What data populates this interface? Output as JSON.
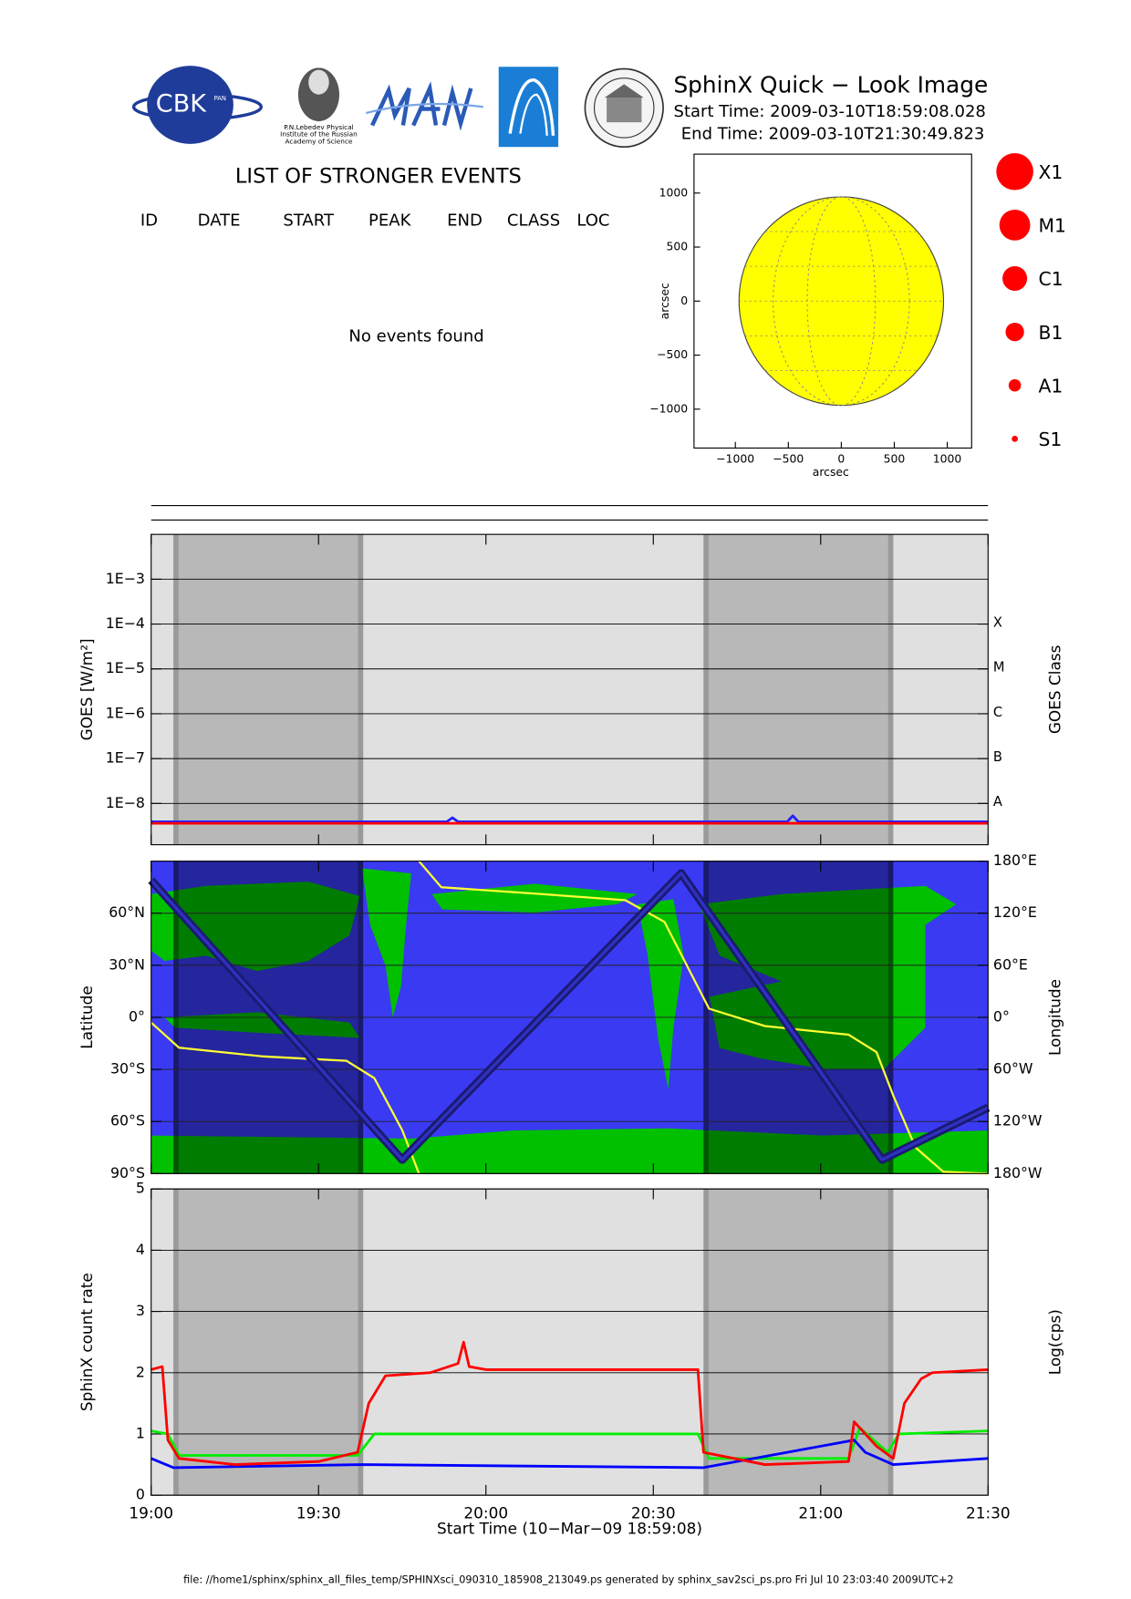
{
  "header": {
    "title": "SphinX Quick − Look Image",
    "start_time": "Start Time: 2009-03-10T18:59:08.028",
    "end_time": "End Time: 2009-03-10T21:30:49.823",
    "logo_cbk": "CBK",
    "logo_pan": "PAN",
    "lebedev": [
      "P.N.Lebedev Physical",
      "Institute of the Russian",
      "Academy of Science"
    ]
  },
  "events": {
    "title": "LIST OF STRONGER EVENTS",
    "columns": [
      "ID",
      "DATE",
      "START",
      "PEAK",
      "END",
      "CLASS",
      "LOC"
    ],
    "message": "No events found"
  },
  "class_legend": [
    "X1",
    "M1",
    "C1",
    "B1",
    "A1",
    "S1"
  ],
  "footer": "file: //home1/sphinx/sphinx_all_files_temp/SPHINXsci_090310_185908_213049.ps generated by sphinx_sav2sci_ps.pro Fri Jul 10 23:03:40 2009UTC+2",
  "chart_data": [
    {
      "type": "disk",
      "xlabel": "arcsec",
      "ylabel": "arcsec",
      "xlim": [
        -1390,
        1230
      ],
      "ylim": [
        -1360,
        1360
      ],
      "xticks": [
        {
          "value": -1000,
          "label": "−1000"
        },
        {
          "value": -500,
          "label": "−500"
        },
        0,
        500,
        1000
      ],
      "yticks": [
        1000,
        500,
        0,
        {
          "value": -500,
          "label": "−500"
        },
        {
          "value": -1000,
          "label": "−1000"
        }
      ],
      "radius": 965,
      "color": "#ffff00"
    },
    {
      "type": "line",
      "ylabel": "GOES [W/m²]",
      "y2label": "GOES Class",
      "xlim": [
        "19:00",
        "21:30"
      ],
      "ylim": [
        1.2e-09,
        0.01
      ],
      "log_y": true,
      "grid": true,
      "xticks": [
        "19:00",
        "19:30",
        "20:00",
        "20:30",
        "21:00",
        "21:30"
      ],
      "yticks": [
        {
          "value": 0.001,
          "label": "1E−3"
        },
        {
          "value": 0.0001,
          "label": "1E−4"
        },
        {
          "value": 1e-05,
          "label": "1E−5"
        },
        {
          "value": 1e-06,
          "label": "1E−6"
        },
        {
          "value": 1e-07,
          "label": "1E−7"
        },
        {
          "value": 1e-08,
          "label": "1E−8"
        }
      ],
      "class_ticks": [
        {
          "value": 0.0001,
          "label": "X"
        },
        {
          "value": 1e-05,
          "label": "M"
        },
        {
          "value": 1e-06,
          "label": "C"
        },
        {
          "value": 1e-07,
          "label": "B"
        },
        {
          "value": 1e-08,
          "label": "A"
        }
      ],
      "night": [
        [
          "19:04",
          "19:38"
        ],
        [
          "20:39",
          "21:13"
        ]
      ],
      "series": [
        {
          "color": "#2020ff",
          "x": [
            "19:00",
            "19:53",
            "19:54",
            "19:55",
            "20:54",
            "20:55",
            "20:56",
            "21:30"
          ],
          "values": [
            3.9e-09,
            3.9e-09,
            4.8e-09,
            3.9e-09,
            3.9e-09,
            5.3e-09,
            3.9e-09,
            3.9e-09
          ]
        },
        {
          "color": "#ff0000",
          "x": [
            "19:00",
            "21:30"
          ],
          "values": [
            3.6e-09,
            3.6e-09
          ]
        }
      ]
    },
    {
      "type": "map",
      "ylabel": "Latitude",
      "y2label": "Longitude",
      "xlim": [
        "19:00",
        "21:30"
      ],
      "ylim": [
        -90,
        90
      ],
      "grid": true,
      "xticks": [
        "19:00",
        "19:30",
        "20:00",
        "20:30",
        "21:00",
        "21:30"
      ],
      "yticks": [
        {
          "value": 60,
          "label": "60°N"
        },
        {
          "value": 30,
          "label": "30°N"
        },
        {
          "value": 0,
          "label": "0°"
        },
        {
          "value": -30,
          "label": "30°S"
        },
        {
          "value": -60,
          "label": "60°S"
        },
        {
          "value": -90,
          "label": "90°S"
        }
      ],
      "y2lim": [
        -180,
        180
      ],
      "y2ticks": [
        {
          "value": 180,
          "label": "180°E"
        },
        {
          "value": 120,
          "label": "120°E"
        },
        {
          "value": 60,
          "label": "60°E"
        },
        {
          "value": 0,
          "label": "0°"
        },
        {
          "value": -60,
          "label": "60°W"
        },
        {
          "value": -120,
          "label": "120°W"
        },
        {
          "value": -180,
          "label": "180°W"
        }
      ],
      "night": [
        [
          "19:04",
          "19:38"
        ],
        [
          "20:39",
          "21:13"
        ]
      ],
      "series": [
        {
          "color": "#ffff33",
          "axis": "y2",
          "x": [
            "19:00",
            "19:05",
            "19:20",
            "19:35",
            "19:40",
            "19:45",
            "19:48",
            "19:48",
            "19:48",
            "19:52",
            "20:10",
            "20:25",
            "20:32",
            "20:36",
            "20:40",
            "20:50",
            "21:05",
            "21:10",
            "21:13",
            "21:17",
            "21:22",
            "21:30"
          ],
          "values": [
            -6,
            -35,
            -45,
            -50,
            -70,
            -130,
            -180,
            null,
            180,
            150,
            142,
            135,
            110,
            60,
            10,
            -10,
            -20,
            -40,
            -90,
            -150,
            -178,
            -180
          ]
        },
        {
          "color": "#1a1a70",
          "x": [
            "19:00",
            "19:45",
            "20:35",
            "21:11",
            "21:30"
          ],
          "values": [
            79,
            -82,
            83,
            -82,
            -52
          ]
        }
      ]
    },
    {
      "type": "line",
      "ylabel": "SphinX count rate",
      "y2label": "Log(cps)",
      "xlabel": "Start Time (10−Mar−09 18:59:08)",
      "xlim": [
        "19:00",
        "21:30"
      ],
      "ylim": [
        0,
        5
      ],
      "grid": true,
      "xticks": [
        "19:00",
        "19:30",
        "20:00",
        "20:30",
        "21:00",
        "21:30"
      ],
      "yticks": [
        0,
        1,
        2,
        3,
        4,
        5
      ],
      "night": [
        [
          "19:04",
          "19:38"
        ],
        [
          "20:39",
          "21:13"
        ]
      ],
      "series": [
        {
          "color": "#00ee00",
          "x": [
            "19:00",
            "19:03",
            "19:05",
            "19:37",
            "19:40",
            "20:38",
            "20:40",
            "21:05",
            "21:07",
            "21:12",
            "21:14",
            "21:30"
          ],
          "values": [
            1.05,
            1.0,
            0.65,
            0.65,
            1.0,
            1.0,
            0.6,
            0.6,
            1.1,
            0.7,
            1.0,
            1.05
          ]
        },
        {
          "color": "#0000ff",
          "x": [
            "19:00",
            "19:04",
            "19:38",
            "20:39",
            "21:06",
            "21:08",
            "21:13",
            "21:30"
          ],
          "values": [
            0.6,
            0.45,
            0.5,
            0.45,
            0.9,
            0.7,
            0.5,
            0.6
          ]
        },
        {
          "color": "#ff0000",
          "x": [
            "19:00",
            "19:02",
            "19:03",
            "19:05",
            "19:15",
            "19:30",
            "19:37",
            "19:39",
            "19:42",
            "19:50",
            "19:55",
            "19:56",
            "19:57",
            "20:00",
            "20:38",
            "20:39",
            "20:50",
            "21:05",
            "21:06",
            "21:08",
            "21:10",
            "21:13",
            "21:15",
            "21:18",
            "21:20",
            "21:30"
          ],
          "values": [
            2.05,
            2.1,
            0.9,
            0.6,
            0.5,
            0.55,
            0.7,
            1.5,
            1.95,
            2.0,
            2.15,
            2.5,
            2.1,
            2.05,
            2.05,
            0.7,
            0.5,
            0.55,
            1.2,
            1.0,
            0.8,
            0.6,
            1.5,
            1.9,
            2.0,
            2.05
          ]
        }
      ]
    }
  ]
}
